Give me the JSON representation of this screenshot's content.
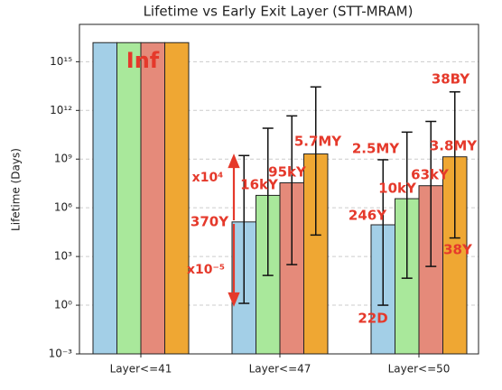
{
  "chart_data": {
    "type": "bar",
    "title": "Lifetime vs Early Exit Layer (STT-MRAM)",
    "y_label": "Lifetime (Days)",
    "log_y": true,
    "grid": true,
    "categories": [
      "Layer<=41",
      "Layer<=47",
      "Layer<=50"
    ],
    "series": [
      {
        "color": "#a3cfe7",
        "values": [
          1.5e+16,
          135050,
          89790
        ],
        "value_labels": [
          null,
          "370Y",
          "246Y"
        ],
        "lower": [
          null,
          1.3,
          1
        ],
        "upper": [
          null,
          1660000000.0,
          912500000.0
        ]
      },
      {
        "color": "#a9e89b",
        "values": [
          1.5e+16,
          5840000,
          3650000
        ],
        "value_labels": [
          null,
          "16kY",
          "10kY"
        ],
        "lower": [
          null,
          68,
          46
        ],
        "upper": [
          null,
          80000000000.0,
          46000000000.0
        ]
      },
      {
        "color": "#e58a7a",
        "values": [
          1.5e+16,
          34675000,
          22995000
        ],
        "value_labels": [
          null,
          "95kY",
          "63kY"
        ],
        "lower": [
          null,
          316,
          245
        ],
        "upper": [
          null,
          460000000000.0,
          210000000000.0
        ]
      },
      {
        "color": "#efa733",
        "values": [
          1.5e+16,
          2080500000,
          1387000000
        ],
        "value_labels": [
          null,
          "5.7MY",
          "3.8MY"
        ],
        "lower": [
          null,
          21000,
          13870
        ],
        "upper": [
          null,
          28000000000000.0,
          13870000000000.0
        ]
      }
    ],
    "annotations": [
      "Inf",
      "x10⁴",
      "x10⁻⁵",
      "2.5MY",
      "38BY",
      "22D",
      "38Y"
    ],
    "annotation_color": "#e5392b",
    "ylim": [
      0.001,
      2e+17
    ],
    "yticks": [
      {
        "value": 0.001,
        "label": "10⁻³"
      },
      {
        "value": 1,
        "label": "10⁰"
      },
      {
        "value": 1000,
        "label": "10³"
      },
      {
        "value": 1000000,
        "label": "10⁶"
      },
      {
        "value": 1000000000,
        "label": "10⁹"
      },
      {
        "value": 1000000000000,
        "label": "10¹²"
      },
      {
        "value": 1000000000000000,
        "label": "10¹⁵"
      }
    ]
  }
}
